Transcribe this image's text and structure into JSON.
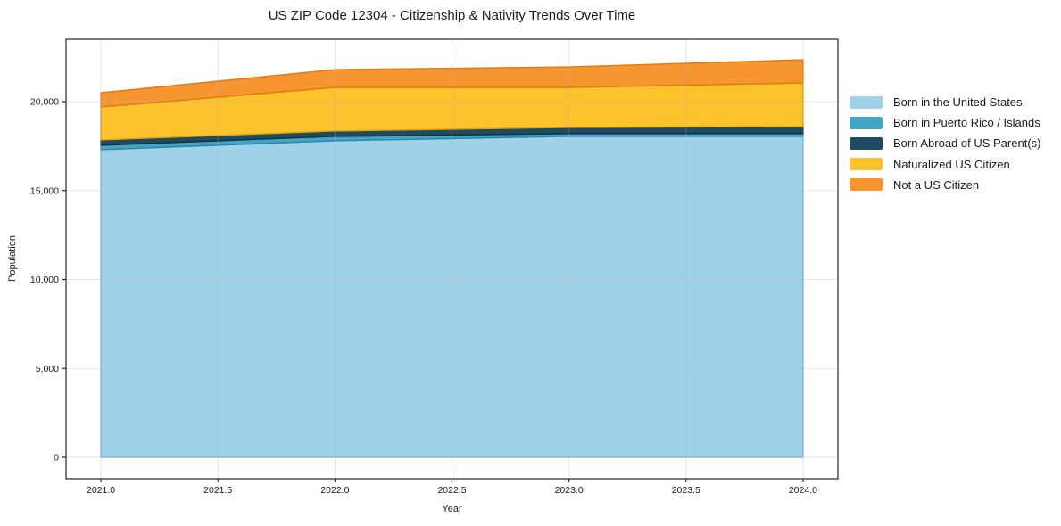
{
  "title": "US ZIP Code 12304 - Citizenship & Nativity Trends Over Time",
  "chart_data": {
    "type": "area",
    "stacked": true,
    "title": "US ZIP Code 12304 - Citizenship & Nativity Trends Over Time",
    "xlabel": "Year",
    "ylabel": "Population",
    "x": [
      2021,
      2022,
      2023,
      2024
    ],
    "series": [
      {
        "name": "Born in the United States",
        "values": [
          17300,
          17800,
          18050,
          18050
        ],
        "color": "#9fd2e9",
        "edge_color": "#79bcda"
      },
      {
        "name": "Born in Puerto Rico / Islands",
        "values": [
          250,
          250,
          150,
          150
        ],
        "color": "#43a5c5",
        "edge_color": "#2e89a8"
      },
      {
        "name": "Born Abroad of US Parent(s)",
        "values": [
          300,
          300,
          350,
          400
        ],
        "color": "#1f4a5f",
        "edge_color": "#14323f"
      },
      {
        "name": "Naturalized US Citizen",
        "values": [
          1850,
          2450,
          2250,
          2450
        ],
        "color": "#fcc32d",
        "edge_color": "#e2a414"
      },
      {
        "name": "Not a US Citizen",
        "values": [
          800,
          1000,
          1150,
          1300
        ],
        "color": "#f79630",
        "edge_color": "#dd7d15"
      }
    ],
    "totals": [
      20500,
      21800,
      21950,
      22350
    ],
    "xlim": [
      2020.851,
      2024.149
    ],
    "ylim": [
      -1203,
      23509
    ],
    "x_ticks": [
      {
        "value": 2021.0,
        "label": "2021.0"
      },
      {
        "value": 2021.5,
        "label": "2021.5"
      },
      {
        "value": 2022.0,
        "label": "2022.0"
      },
      {
        "value": 2022.5,
        "label": "2022.5"
      },
      {
        "value": 2023.0,
        "label": "2023.0"
      },
      {
        "value": 2023.5,
        "label": "2023.5"
      },
      {
        "value": 2024.0,
        "label": "2024.0"
      }
    ],
    "y_ticks": [
      {
        "value": 0,
        "label": "0"
      },
      {
        "value": 5000,
        "label": "5,000"
      },
      {
        "value": 10000,
        "label": "10,000"
      },
      {
        "value": 15000,
        "label": "15,000"
      },
      {
        "value": 20000,
        "label": "20,000"
      }
    ],
    "grid": "both axes, light gray, drawn above areas",
    "legend_position": "outside right, top, frameless",
    "grid_color": "#b0b0b0",
    "axis_color": "#262626",
    "text_color": "#1a1a1a"
  }
}
